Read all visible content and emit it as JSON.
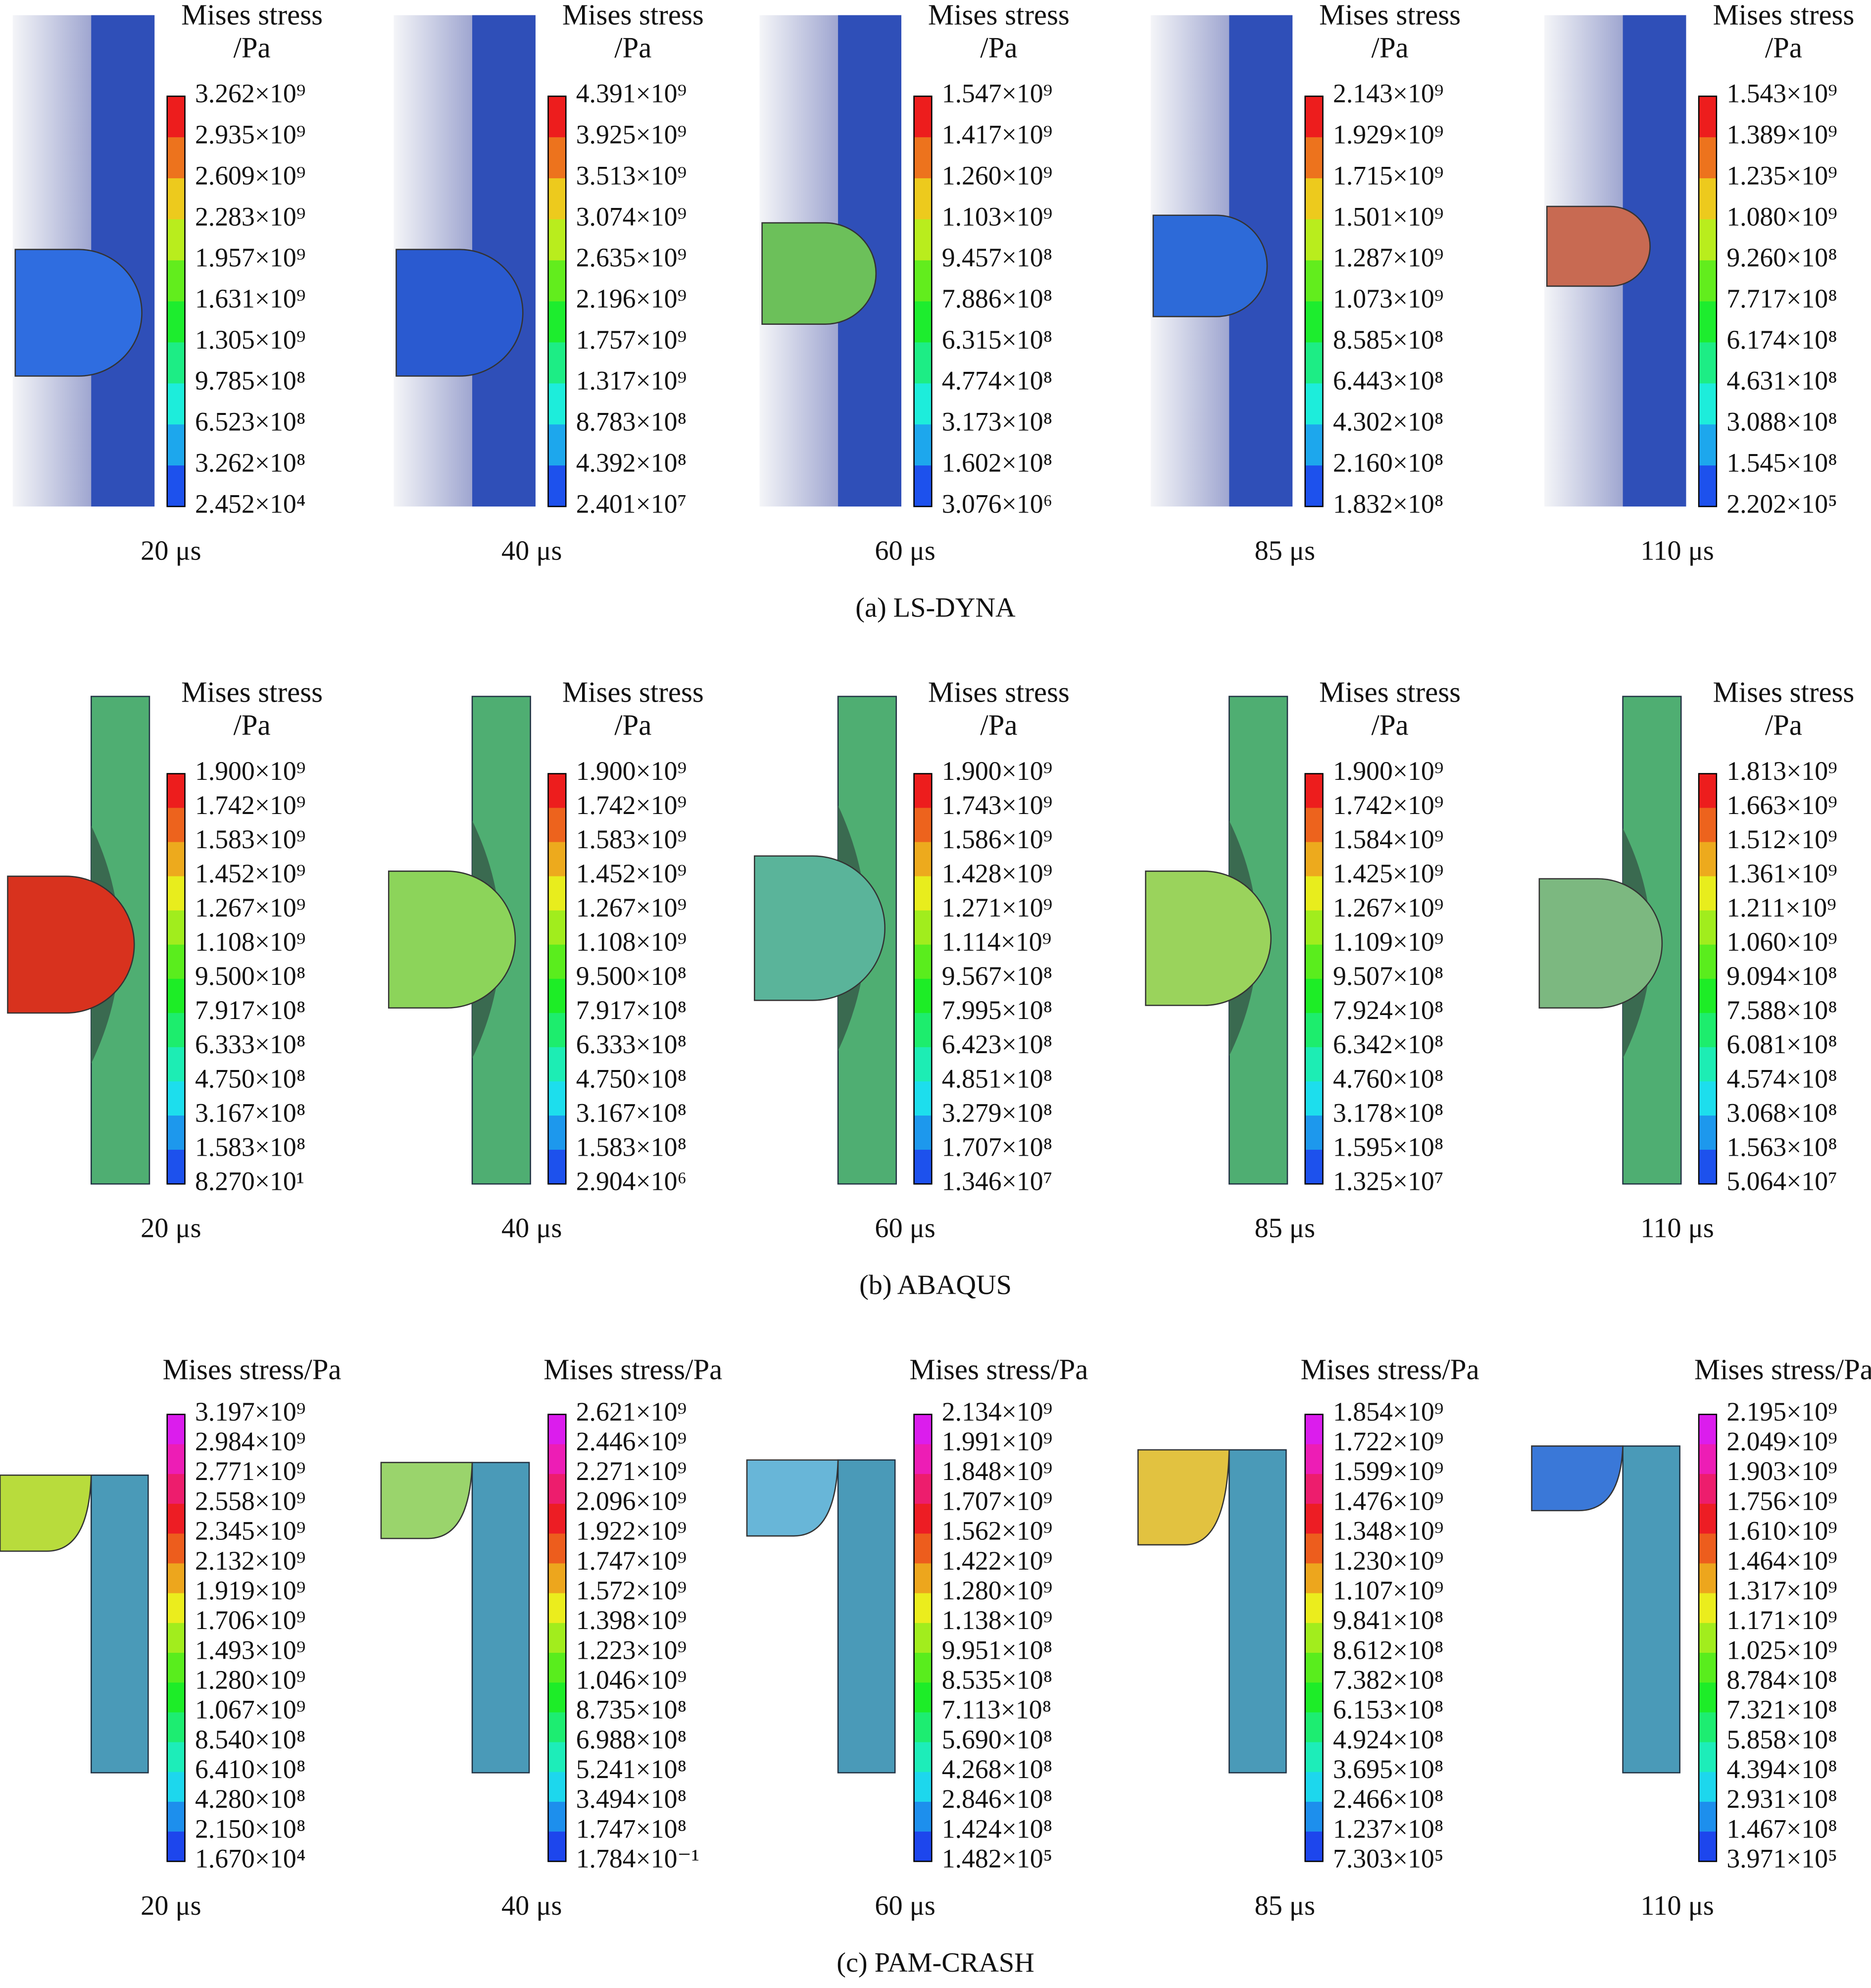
{
  "rows": [
    {
      "caption": "(a) LS-DYNA",
      "panels": [
        {
          "title": "Mises stress",
          "unit": "/Pa",
          "time": "20 μs",
          "ticks": [
            "3.262×10⁹",
            "2.935×10⁹",
            "2.609×10⁹",
            "2.283×10⁹",
            "1.957×10⁹",
            "1.631×10⁹",
            "1.305×10⁹",
            "9.785×10⁸",
            "6.523×10⁸",
            "3.262×10⁸",
            "2.452×10⁴"
          ]
        },
        {
          "title": "Mises stress",
          "unit": "/Pa",
          "time": "40 μs",
          "ticks": [
            "4.391×10⁹",
            "3.925×10⁹",
            "3.513×10⁹",
            "3.074×10⁹",
            "2.635×10⁹",
            "2.196×10⁹",
            "1.757×10⁹",
            "1.317×10⁹",
            "8.783×10⁸",
            "4.392×10⁸",
            "2.401×10⁷"
          ]
        },
        {
          "title": "Mises stress",
          "unit": "/Pa",
          "time": "60 μs",
          "ticks": [
            "1.547×10⁹",
            "1.417×10⁹",
            "1.260×10⁹",
            "1.103×10⁹",
            "9.457×10⁸",
            "7.886×10⁸",
            "6.315×10⁸",
            "4.774×10⁸",
            "3.173×10⁸",
            "1.602×10⁸",
            "3.076×10⁶"
          ]
        },
        {
          "title": "Mises stress",
          "unit": "/Pa",
          "time": "85 μs",
          "ticks": [
            "2.143×10⁹",
            "1.929×10⁹",
            "1.715×10⁹",
            "1.501×10⁹",
            "1.287×10⁹",
            "1.073×10⁹",
            "8.585×10⁸",
            "6.443×10⁸",
            "4.302×10⁸",
            "2.160×10⁸",
            "1.832×10⁸"
          ]
        },
        {
          "title": "Mises stress",
          "unit": "/Pa",
          "time": "110 μs",
          "ticks": [
            "1.543×10⁹",
            "1.389×10⁹",
            "1.235×10⁹",
            "1.080×10⁹",
            "9.260×10⁸",
            "7.717×10⁸",
            "6.174×10⁸",
            "4.631×10⁸",
            "3.088×10⁸",
            "1.545×10⁸",
            "2.202×10⁵"
          ]
        }
      ]
    },
    {
      "caption": "(b) ABAQUS",
      "panels": [
        {
          "title": "Mises stress",
          "unit": "/Pa",
          "time": "20 μs",
          "ticks": [
            "1.900×10⁹",
            "1.742×10⁹",
            "1.583×10⁹",
            "1.452×10⁹",
            "1.267×10⁹",
            "1.108×10⁹",
            "9.500×10⁸",
            "7.917×10⁸",
            "6.333×10⁸",
            "4.750×10⁸",
            "3.167×10⁸",
            "1.583×10⁸",
            "8.270×10¹"
          ]
        },
        {
          "title": "Mises stress",
          "unit": "/Pa",
          "time": "40 μs",
          "ticks": [
            "1.900×10⁹",
            "1.742×10⁹",
            "1.583×10⁹",
            "1.452×10⁹",
            "1.267×10⁹",
            "1.108×10⁹",
            "9.500×10⁸",
            "7.917×10⁸",
            "6.333×10⁸",
            "4.750×10⁸",
            "3.167×10⁸",
            "1.583×10⁸",
            "2.904×10⁶"
          ]
        },
        {
          "title": "Mises stress",
          "unit": "/Pa",
          "time": "60 μs",
          "ticks": [
            "1.900×10⁹",
            "1.743×10⁹",
            "1.586×10⁹",
            "1.428×10⁹",
            "1.271×10⁹",
            "1.114×10⁹",
            "9.567×10⁸",
            "7.995×10⁸",
            "6.423×10⁸",
            "4.851×10⁸",
            "3.279×10⁸",
            "1.707×10⁸",
            "1.346×10⁷"
          ]
        },
        {
          "title": "Mises stress",
          "unit": "/Pa",
          "time": "85 μs",
          "ticks": [
            "1.900×10⁹",
            "1.742×10⁹",
            "1.584×10⁹",
            "1.425×10⁹",
            "1.267×10⁹",
            "1.109×10⁹",
            "9.507×10⁸",
            "7.924×10⁸",
            "6.342×10⁸",
            "4.760×10⁸",
            "3.178×10⁸",
            "1.595×10⁸",
            "1.325×10⁷"
          ]
        },
        {
          "title": "Mises stress",
          "unit": "/Pa",
          "time": "110 μs",
          "ticks": [
            "1.813×10⁹",
            "1.663×10⁹",
            "1.512×10⁹",
            "1.361×10⁹",
            "1.211×10⁹",
            "1.060×10⁹",
            "9.094×10⁸",
            "7.588×10⁸",
            "6.081×10⁸",
            "4.574×10⁸",
            "3.068×10⁸",
            "1.563×10⁸",
            "5.064×10⁷"
          ]
        }
      ]
    },
    {
      "caption": "(c) PAM-CRASH",
      "panels": [
        {
          "title": "Mises stress/Pa",
          "time": "20 μs",
          "ticks": [
            "3.197×10⁹",
            "2.984×10⁹",
            "2.771×10⁹",
            "2.558×10⁹",
            "2.345×10⁹",
            "2.132×10⁹",
            "1.919×10⁹",
            "1.706×10⁹",
            "1.493×10⁹",
            "1.280×10⁹",
            "1.067×10⁹",
            "8.540×10⁸",
            "6.410×10⁸",
            "4.280×10⁸",
            "2.150×10⁸",
            "1.670×10⁴"
          ]
        },
        {
          "title": "Mises stress/Pa",
          "time": "40 μs",
          "ticks": [
            "2.621×10⁹",
            "2.446×10⁹",
            "2.271×10⁹",
            "2.096×10⁹",
            "1.922×10⁹",
            "1.747×10⁹",
            "1.572×10⁹",
            "1.398×10⁹",
            "1.223×10⁹",
            "1.046×10⁹",
            "8.735×10⁸",
            "6.988×10⁸",
            "5.241×10⁸",
            "3.494×10⁸",
            "1.747×10⁸",
            "1.784×10⁻¹"
          ]
        },
        {
          "title": "Mises stress/Pa",
          "time": "60 μs",
          "ticks": [
            "2.134×10⁹",
            "1.991×10⁹",
            "1.848×10⁹",
            "1.707×10⁹",
            "1.562×10⁹",
            "1.422×10⁹",
            "1.280×10⁹",
            "1.138×10⁹",
            "9.951×10⁸",
            "8.535×10⁸",
            "7.113×10⁸",
            "5.690×10⁸",
            "4.268×10⁸",
            "2.846×10⁸",
            "1.424×10⁸",
            "1.482×10⁵"
          ]
        },
        {
          "title": "Mises stress/Pa",
          "time": "85 μs",
          "ticks": [
            "1.854×10⁹",
            "1.722×10⁹",
            "1.599×10⁹",
            "1.476×10⁹",
            "1.348×10⁹",
            "1.230×10⁹",
            "1.107×10⁹",
            "9.841×10⁸",
            "8.612×10⁸",
            "7.382×10⁸",
            "6.153×10⁸",
            "4.924×10⁸",
            "3.695×10⁸",
            "2.466×10⁸",
            "1.237×10⁸",
            "7.303×10⁵"
          ]
        },
        {
          "title": "Mises stress/Pa",
          "time": "110 μs",
          "ticks": [
            "2.195×10⁹",
            "2.049×10⁹",
            "1.903×10⁹",
            "1.756×10⁹",
            "1.610×10⁹",
            "1.464×10⁹",
            "1.317×10⁹",
            "1.171×10⁹",
            "1.025×10⁹",
            "8.784×10⁸",
            "7.321×10⁸",
            "5.858×10⁸",
            "4.394×10⁸",
            "2.931×10⁸",
            "1.467×10⁸",
            "3.971×10⁵"
          ]
        }
      ]
    }
  ]
}
